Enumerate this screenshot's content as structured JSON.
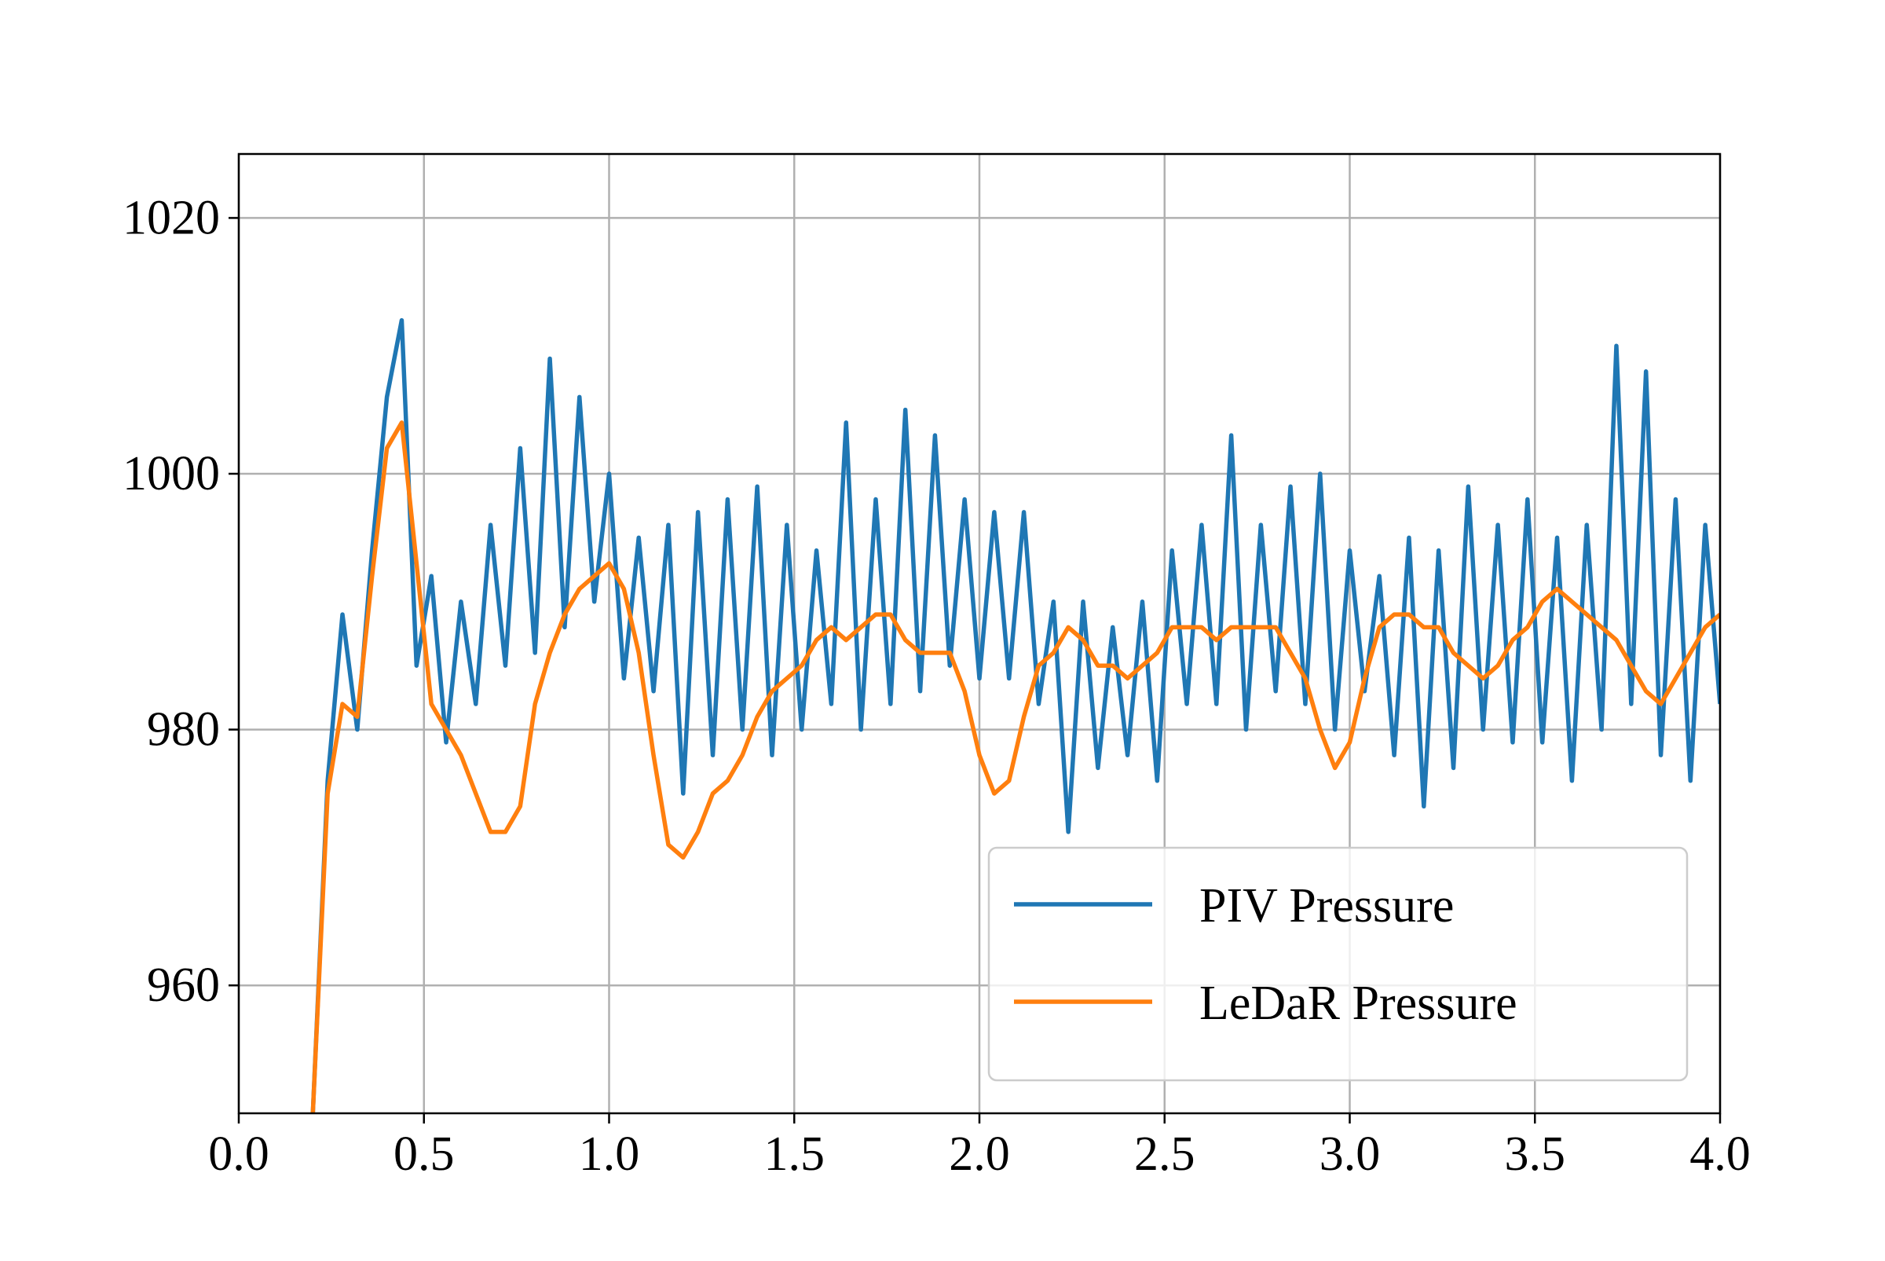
{
  "chart_data": {
    "type": "line",
    "x": [
      0.2,
      0.24,
      0.28,
      0.32,
      0.36,
      0.4,
      0.44,
      0.48,
      0.52,
      0.56,
      0.6,
      0.64,
      0.68,
      0.72,
      0.76,
      0.8,
      0.84,
      0.88,
      0.92,
      0.96,
      1.0,
      1.04,
      1.08,
      1.12,
      1.16,
      1.2,
      1.24,
      1.28,
      1.32,
      1.36,
      1.4,
      1.44,
      1.48,
      1.52,
      1.56,
      1.6,
      1.64,
      1.68,
      1.72,
      1.76,
      1.8,
      1.84,
      1.88,
      1.92,
      1.96,
      2.0,
      2.04,
      2.08,
      2.12,
      2.16,
      2.2,
      2.24,
      2.28,
      2.32,
      2.36,
      2.4,
      2.44,
      2.48,
      2.52,
      2.56,
      2.6,
      2.64,
      2.68,
      2.72,
      2.76,
      2.8,
      2.84,
      2.88,
      2.92,
      2.96,
      3.0,
      3.04,
      3.08,
      3.12,
      3.16,
      3.2,
      3.24,
      3.28,
      3.32,
      3.36,
      3.4,
      3.44,
      3.48,
      3.52,
      3.56,
      3.6,
      3.64,
      3.68,
      3.72,
      3.76,
      3.8,
      3.84,
      3.88,
      3.92,
      3.96,
      4.0
    ],
    "series": [
      {
        "name": "PIV Pressure",
        "color": "#1f77b4",
        "values": [
          950,
          976,
          989,
          980,
          994,
          1006,
          1012,
          985,
          992,
          979,
          990,
          982,
          996,
          985,
          1002,
          986,
          1009,
          988,
          1006,
          990,
          1000,
          984,
          995,
          983,
          996,
          975,
          997,
          978,
          998,
          980,
          999,
          978,
          996,
          980,
          994,
          982,
          1004,
          980,
          998,
          982,
          1005,
          983,
          1003,
          985,
          998,
          984,
          997,
          984,
          997,
          982,
          990,
          972,
          990,
          977,
          988,
          978,
          990,
          976,
          994,
          982,
          996,
          982,
          1003,
          980,
          996,
          983,
          999,
          982,
          1000,
          980,
          994,
          983,
          992,
          978,
          995,
          974,
          994,
          977,
          999,
          980,
          996,
          979,
          998,
          979,
          995,
          976,
          996,
          980,
          1010,
          982,
          1008,
          978,
          998,
          976,
          996,
          982
        ]
      },
      {
        "name": "LeDaR Pressure",
        "color": "#ff7f0e",
        "values": [
          950,
          975,
          982,
          981,
          992,
          1002,
          1004,
          993,
          982,
          980,
          978,
          975,
          972,
          972,
          974,
          982,
          986,
          989,
          991,
          992,
          993,
          991,
          986,
          978,
          971,
          970,
          972,
          975,
          976,
          978,
          981,
          983,
          984,
          985,
          987,
          988,
          987,
          988,
          989,
          989,
          987,
          986,
          986,
          986,
          983,
          978,
          975,
          976,
          981,
          985,
          986,
          988,
          987,
          985,
          985,
          984,
          985,
          986,
          988,
          988,
          988,
          987,
          988,
          988,
          988,
          988,
          986,
          984,
          980,
          977,
          979,
          984,
          988,
          989,
          989,
          988,
          988,
          986,
          985,
          984,
          985,
          987,
          988,
          990,
          991,
          990,
          989,
          988,
          987,
          985,
          983,
          982,
          984,
          986,
          988,
          989
        ]
      }
    ],
    "xlim": [
      0,
      4
    ],
    "ylim": [
      950,
      1025
    ],
    "xticks": [
      {
        "value": 0,
        "label": "0.0"
      },
      0.5,
      {
        "value": 1,
        "label": "1.0"
      },
      1.5,
      {
        "value": 2,
        "label": "2.0"
      },
      2.5,
      {
        "value": 3,
        "label": "3.0"
      },
      3.5,
      {
        "value": 4,
        "label": "4.0"
      }
    ],
    "yticks": [
      960,
      980,
      1000,
      1020
    ],
    "grid": true,
    "legend": "lower right"
  }
}
